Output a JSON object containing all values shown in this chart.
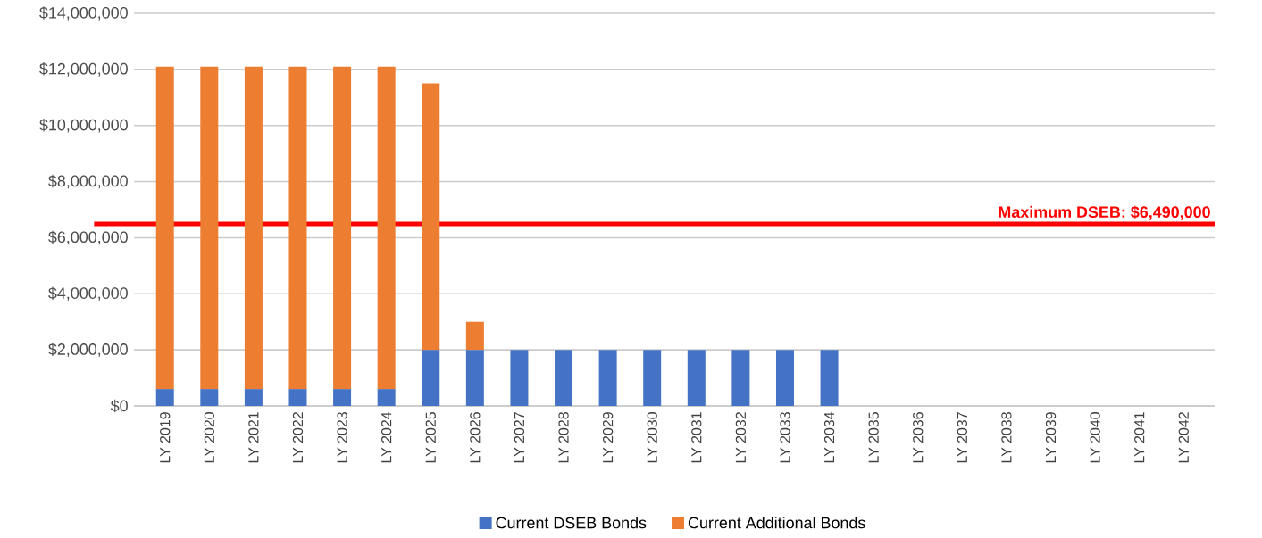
{
  "chart_data": {
    "type": "bar",
    "stacked": true,
    "grid": "y",
    "legend": "bottom",
    "categories": [
      "LY 2019",
      "LY 2020",
      "LY 2021",
      "LY 2022",
      "LY 2023",
      "LY 2024",
      "LY 2025",
      "LY 2026",
      "LY 2027",
      "LY 2028",
      "LY 2029",
      "LY 2030",
      "LY 2031",
      "LY 2032",
      "LY 2033",
      "LY 2034",
      "LY 2035",
      "LY 2036",
      "LY 2037",
      "LY 2038",
      "LY 2039",
      "LY 2040",
      "LY 2041",
      "LY 2042"
    ],
    "series": [
      {
        "name": "Current DSEB Bonds",
        "color": "#4472c4",
        "values": [
          600000,
          600000,
          600000,
          600000,
          600000,
          600000,
          2000000,
          2000000,
          2000000,
          2000000,
          2000000,
          2000000,
          2000000,
          2000000,
          2000000,
          2000000,
          0,
          0,
          0,
          0,
          0,
          0,
          0,
          0
        ]
      },
      {
        "name": "Current Additional Bonds",
        "color": "#ed7d31",
        "values": [
          11500000,
          11500000,
          11500000,
          11500000,
          11500000,
          11500000,
          9500000,
          1000000,
          0,
          0,
          0,
          0,
          0,
          0,
          0,
          0,
          0,
          0,
          0,
          0,
          0,
          0,
          0,
          0
        ]
      }
    ],
    "ylim": [
      0,
      14000000
    ],
    "yticks": [
      {
        "value": 0,
        "label": "$0"
      },
      {
        "value": 2000000,
        "label": "$2,000,000"
      },
      {
        "value": 4000000,
        "label": "$4,000,000"
      },
      {
        "value": 6000000,
        "label": "$6,000,000"
      },
      {
        "value": 8000000,
        "label": "$8,000,000"
      },
      {
        "value": 10000000,
        "label": "$10,000,000"
      },
      {
        "value": 12000000,
        "label": "$12,000,000"
      },
      {
        "value": 14000000,
        "label": "$14,000,000"
      }
    ],
    "ref_lines": [
      {
        "axis": "y",
        "value": 6490000,
        "label": "Maximum DSEB: $6,490,000",
        "color": "#ff0000"
      }
    ]
  }
}
